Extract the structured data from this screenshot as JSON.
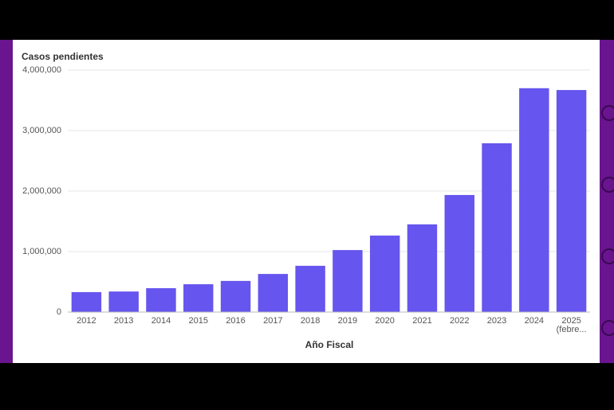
{
  "chart_data": {
    "type": "bar",
    "title": "Casos pendientes",
    "x_label": "Año Fiscal",
    "categories": [
      "2012",
      "2013",
      "2014",
      "2015",
      "2016",
      "2017",
      "2018",
      "2019",
      "2020",
      "2021",
      "2022",
      "2023",
      "2024",
      "2025 (febre..."
    ],
    "values": [
      330000,
      340000,
      395000,
      460000,
      515000,
      630000,
      765000,
      1025000,
      1265000,
      1450000,
      1935000,
      2790000,
      3700000,
      3670000
    ],
    "color": "#6655ee",
    "ylim": [
      0,
      4000000
    ],
    "yticks": [
      0,
      {
        "value": 1000000,
        "label": "1,000,000"
      },
      {
        "value": 2000000,
        "label": "2,000,000"
      },
      {
        "value": 3000000,
        "label": "3,000,000"
      },
      {
        "value": 4000000,
        "label": "4,000,000"
      }
    ],
    "grid": true
  }
}
